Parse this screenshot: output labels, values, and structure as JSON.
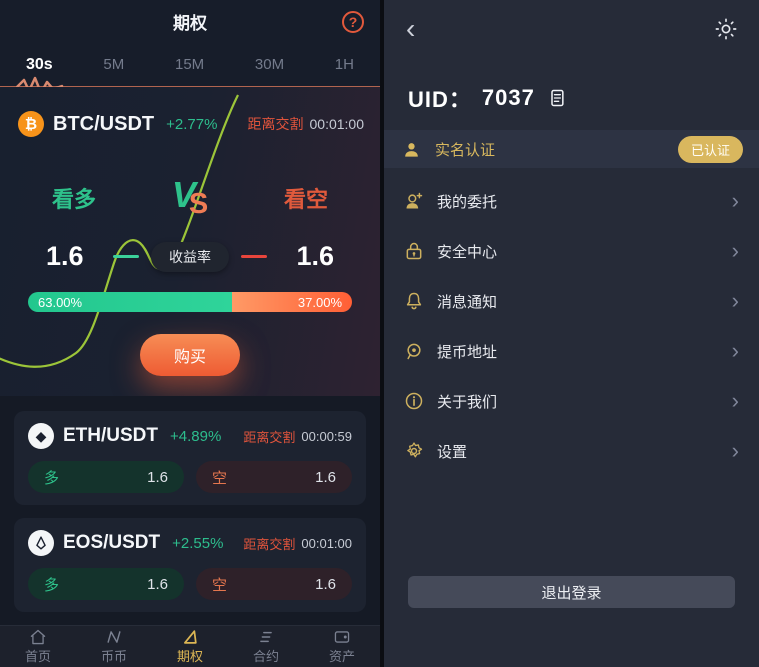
{
  "colors": {
    "accent_orange": "#ee5b33",
    "accent_green": "#2ec28b",
    "gold": "#d9b75e",
    "salmon_line": "#cd7156"
  },
  "icons": {
    "help_glyph": "?",
    "btc_glyph": "₿",
    "eth_glyph": "◆",
    "back_glyph": "‹",
    "chevron_glyph": "›"
  },
  "left": {
    "title": "期权",
    "tabs": [
      "30s",
      "5M",
      "15M",
      "30M",
      "1H"
    ],
    "active_tab": "30s",
    "hero": {
      "pair": "BTC/USDT",
      "change": "+2.77%",
      "delivery_label": "距离交割",
      "countdown": "00:01:00",
      "bull_label": "看多",
      "vs_v": "V",
      "vs_s": "S",
      "bear_label": "看空",
      "bull_odds": "1.6",
      "yield_label": "收益率",
      "bear_odds": "1.6",
      "bull_pct": "63.00%",
      "bear_pct": "37.00%",
      "bull_ratio": 63,
      "buy_label": "购买"
    },
    "markets": [
      {
        "pair": "ETH/USDT",
        "change": "+4.89%",
        "delivery_label": "距离交割",
        "countdown": "00:00:59",
        "long_label": "多",
        "long_odds": "1.6",
        "short_label": "空",
        "short_odds": "1.6"
      },
      {
        "pair": "EOS/USDT",
        "change": "+2.55%",
        "delivery_label": "距离交割",
        "countdown": "00:01:00",
        "long_label": "多",
        "long_odds": "1.6",
        "short_label": "空",
        "short_odds": "1.6"
      }
    ],
    "nav": [
      {
        "label": "首页"
      },
      {
        "label": "币币"
      },
      {
        "label": "期权",
        "active": true
      },
      {
        "label": "合约"
      },
      {
        "label": "资产"
      }
    ]
  },
  "right": {
    "uid_label": "UID：",
    "uid_value": "7037",
    "verify": {
      "label": "实名认证",
      "badge": "已认证"
    },
    "menu": [
      {
        "label": "我的委托"
      },
      {
        "label": "安全中心"
      },
      {
        "label": "消息通知"
      },
      {
        "label": "提币地址"
      },
      {
        "label": "关于我们"
      },
      {
        "label": "设置"
      }
    ],
    "logout_label": "退出登录"
  }
}
